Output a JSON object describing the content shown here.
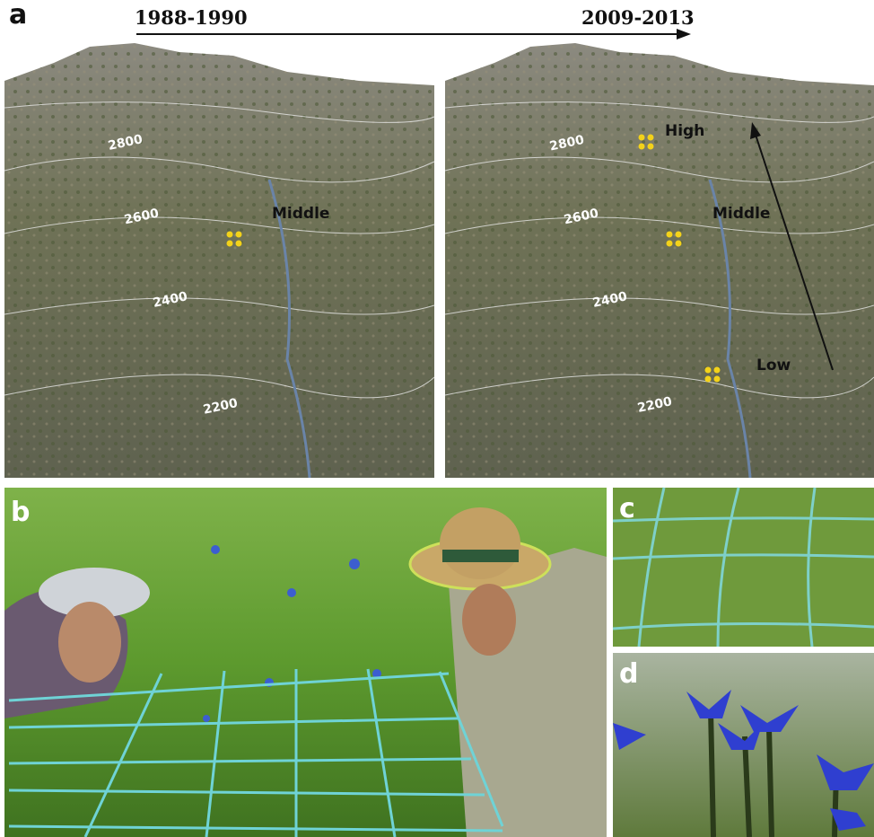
{
  "panel_a": {
    "label": "a",
    "period_start": "1988-1990",
    "period_end": "2009-2013",
    "left_map": {
      "contours": [
        2800,
        2600,
        2400,
        2200
      ],
      "sites": [
        "Middle"
      ]
    },
    "right_map": {
      "contours": [
        2800,
        2600,
        2400,
        2200
      ],
      "sites": [
        "High",
        "Middle",
        "Low"
      ]
    }
  },
  "panel_b": {
    "label": "b"
  },
  "panel_c": {
    "label": "c"
  },
  "panel_d": {
    "label": "d"
  }
}
